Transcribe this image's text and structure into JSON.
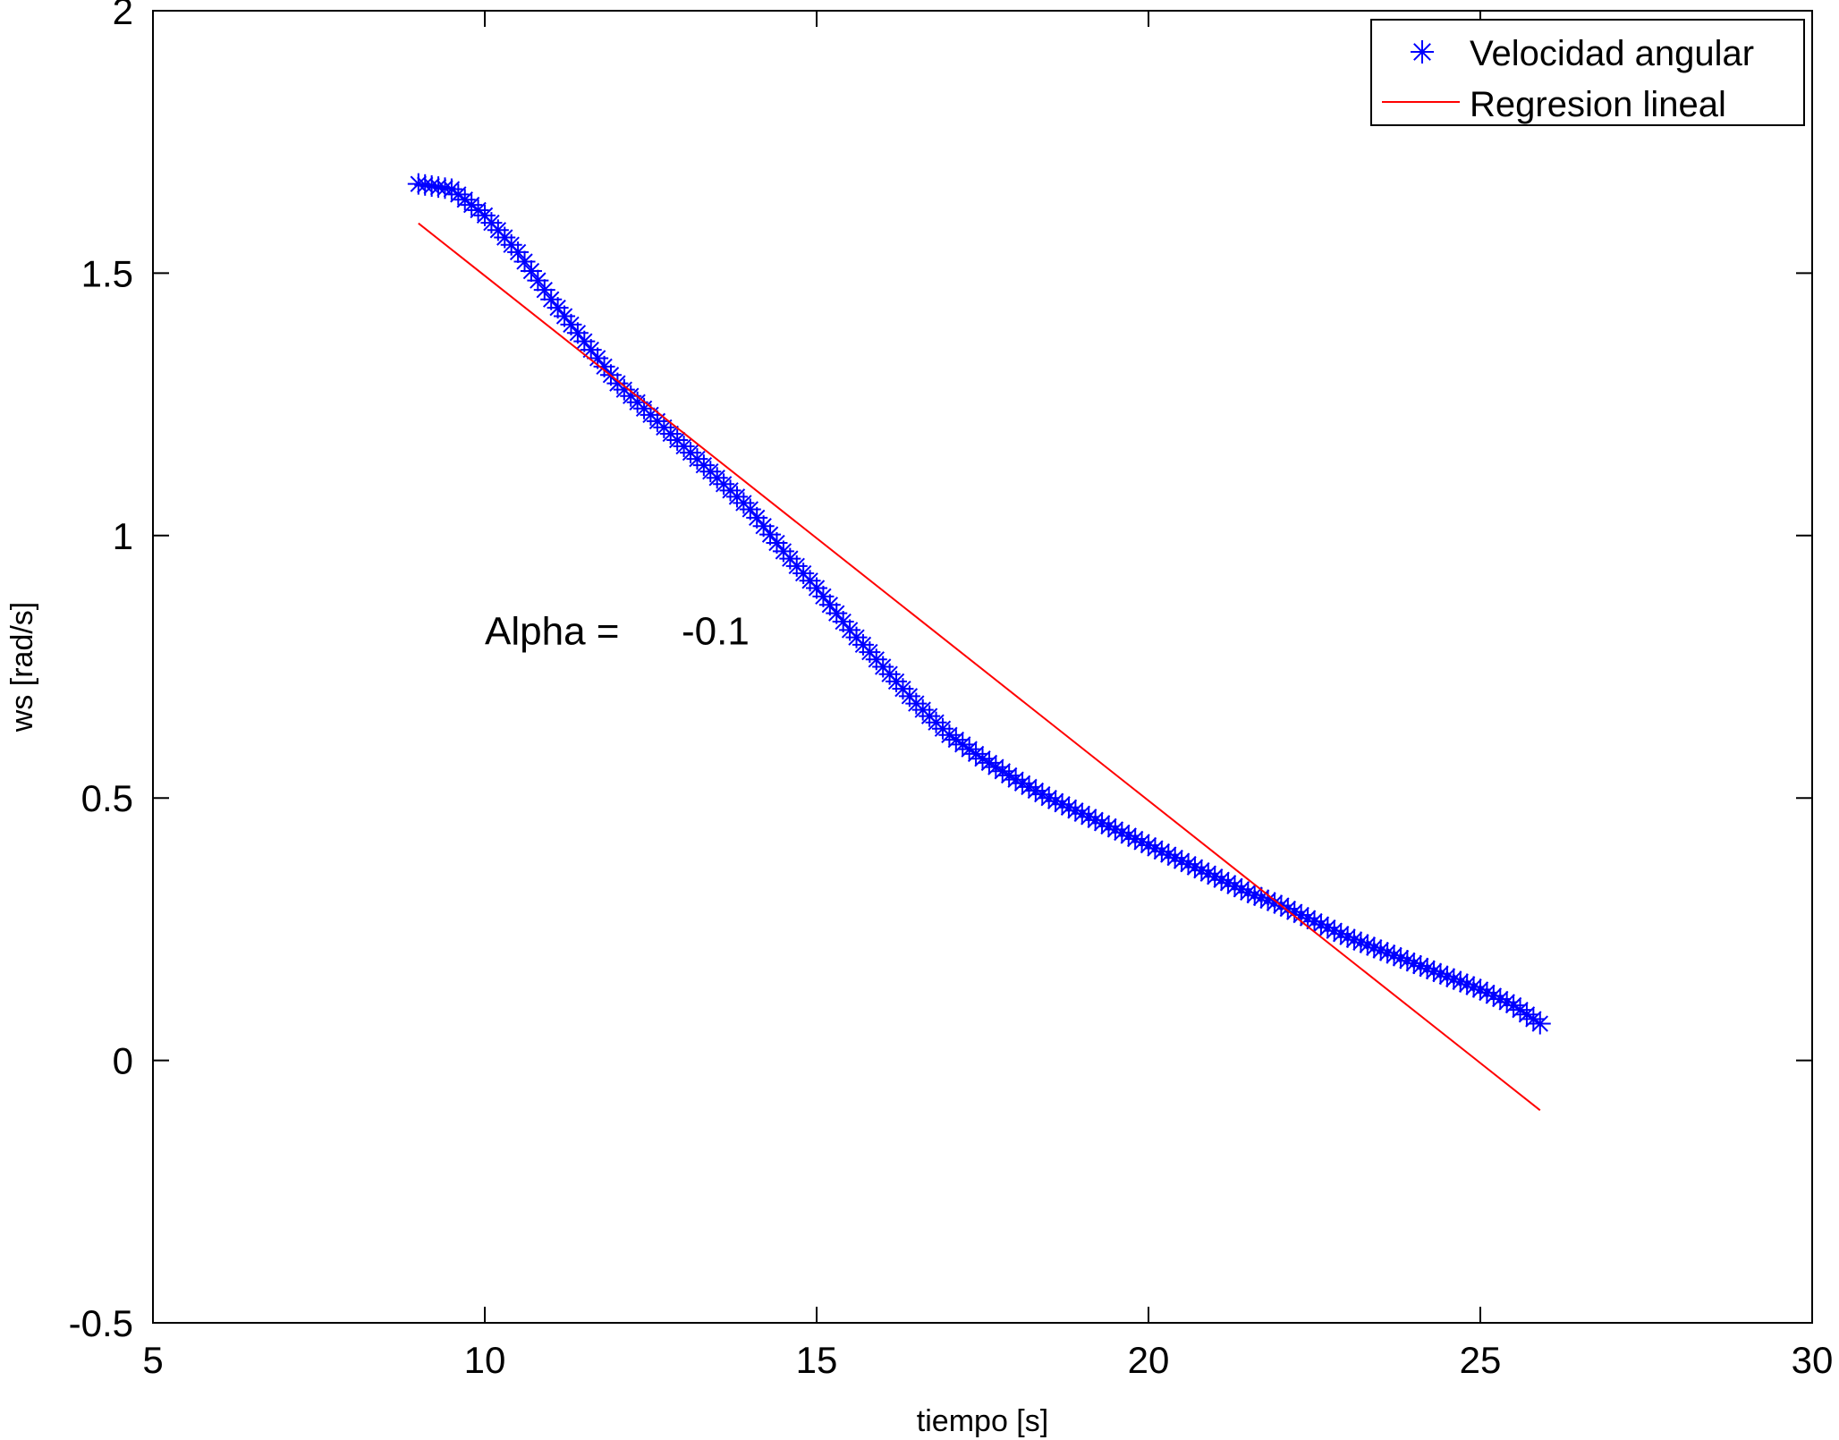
{
  "chart_data": {
    "type": "scatter",
    "title": "",
    "xlabel": "tiempo [s]",
    "ylabel": "ws [rad/s]",
    "xlim": [
      5,
      30
    ],
    "ylim": [
      -0.5,
      2
    ],
    "xticks": [
      "5",
      "10",
      "15",
      "20",
      "25",
      "30"
    ],
    "yticks": [
      "-0.5",
      "0",
      "0.5",
      "1",
      "1.5",
      "2"
    ],
    "xtick_values": [
      5,
      10,
      15,
      20,
      25,
      30
    ],
    "ytick_values": [
      -0.5,
      0,
      0.5,
      1,
      1.5,
      2
    ],
    "grid": false,
    "legend_position": "top-right",
    "annotation": {
      "label": "Alpha =",
      "value": "-0.1",
      "x": 10,
      "y": 0.82
    },
    "series": [
      {
        "name": "Velocidad angular",
        "marker": "asterisk",
        "color": "#0000ff",
        "keypoints": [
          [
            9.0,
            1.67
          ],
          [
            9.5,
            1.66
          ],
          [
            10.0,
            1.61
          ],
          [
            10.5,
            1.54
          ],
          [
            11.0,
            1.45
          ],
          [
            11.5,
            1.37
          ],
          [
            12.0,
            1.29
          ],
          [
            12.5,
            1.23
          ],
          [
            13.0,
            1.17
          ],
          [
            13.5,
            1.11
          ],
          [
            14.0,
            1.05
          ],
          [
            14.5,
            0.97
          ],
          [
            15.0,
            0.9
          ],
          [
            15.5,
            0.82
          ],
          [
            16.0,
            0.75
          ],
          [
            16.5,
            0.68
          ],
          [
            17.0,
            0.62
          ],
          [
            17.5,
            0.575
          ],
          [
            18.0,
            0.535
          ],
          [
            18.5,
            0.5
          ],
          [
            19.0,
            0.47
          ],
          [
            19.5,
            0.44
          ],
          [
            20.0,
            0.41
          ],
          [
            20.5,
            0.38
          ],
          [
            21.0,
            0.35
          ],
          [
            21.5,
            0.32
          ],
          [
            22.0,
            0.295
          ],
          [
            22.5,
            0.265
          ],
          [
            23.0,
            0.235
          ],
          [
            23.5,
            0.21
          ],
          [
            24.0,
            0.185
          ],
          [
            24.5,
            0.16
          ],
          [
            25.0,
            0.135
          ],
          [
            25.5,
            0.105
          ],
          [
            25.9,
            0.07
          ]
        ],
        "sample_step": 0.1
      },
      {
        "name": "Regresion lineal",
        "type": "line",
        "color": "#ff0000",
        "x": [
          9.0,
          25.9
        ],
        "y": [
          1.595,
          -0.095
        ]
      }
    ]
  }
}
